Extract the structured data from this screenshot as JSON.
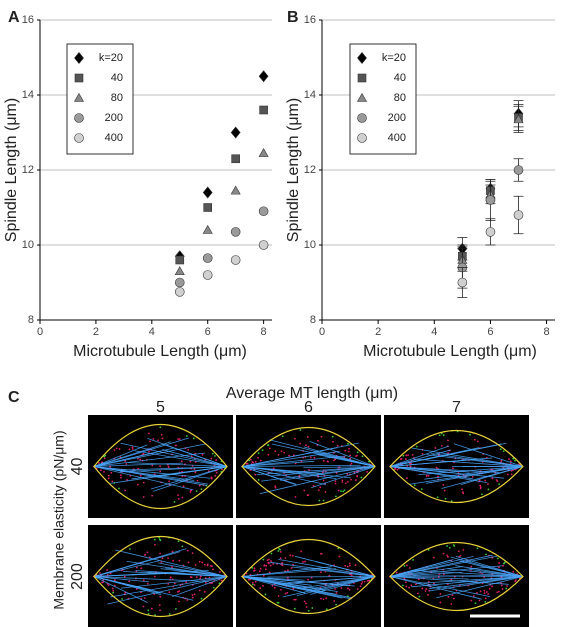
{
  "chart_data": [
    {
      "type": "scatter",
      "label": "A",
      "xlabel": "Microtubule Length (μm)",
      "ylabel": "Spindle Length (μm)",
      "xlim": [
        0,
        8.3
      ],
      "ylim": [
        8,
        16
      ],
      "xticks": [
        0,
        2,
        4,
        6,
        8
      ],
      "yticks": [
        8,
        10,
        12,
        14,
        16
      ],
      "grid": true,
      "x": [
        5,
        6,
        7,
        8
      ],
      "series": [
        {
          "name": "k=20",
          "marker": "diamond",
          "color": "#000000",
          "values": [
            9.7,
            11.4,
            13.0,
            14.5
          ]
        },
        {
          "name": "40",
          "marker": "square",
          "color": "#555555",
          "values": [
            9.6,
            11.0,
            12.3,
            13.6
          ]
        },
        {
          "name": "80",
          "marker": "triangle",
          "color": "#888888",
          "values": [
            9.3,
            10.4,
            11.45,
            12.45
          ]
        },
        {
          "name": "200",
          "marker": "circle",
          "color": "#9a9a9a",
          "values": [
            9.0,
            9.65,
            10.35,
            10.9
          ]
        },
        {
          "name": "400",
          "marker": "circle",
          "color": "#d0d0d0",
          "values": [
            8.75,
            9.2,
            9.6,
            10.0
          ]
        }
      ]
    },
    {
      "type": "errorbar",
      "label": "B",
      "xlabel": "Microtubule Length (μm)",
      "ylabel": "Spindle Length (μm)",
      "xlim": [
        0,
        8.3
      ],
      "ylim": [
        8,
        16
      ],
      "xticks": [
        0,
        2,
        4,
        6,
        8
      ],
      "yticks": [
        8,
        10,
        12,
        14,
        16
      ],
      "grid": true,
      "x": [
        5,
        6,
        7
      ],
      "series": [
        {
          "name": "k=20",
          "marker": "diamond",
          "color": "#000000",
          "values": [
            9.9,
            11.5,
            13.5
          ],
          "errors": [
            0.3,
            0.25,
            0.35
          ]
        },
        {
          "name": "40",
          "marker": "square",
          "color": "#555555",
          "values": [
            9.7,
            11.45,
            13.4
          ],
          "errors": [
            0.3,
            0.25,
            0.35
          ]
        },
        {
          "name": "80",
          "marker": "triangle",
          "color": "#888888",
          "values": [
            9.6,
            11.35,
            13.35
          ],
          "errors": [
            0.3,
            0.25,
            0.35
          ]
        },
        {
          "name": "200",
          "marker": "circle",
          "color": "#9a9a9a",
          "values": [
            9.4,
            11.2,
            12.0
          ],
          "errors": [
            0.55,
            0.55,
            0.3
          ]
        },
        {
          "name": "400",
          "marker": "circle",
          "color": "#d0d0d0",
          "values": [
            9.0,
            10.35,
            10.8
          ],
          "errors": [
            0.4,
            0.35,
            0.5
          ]
        }
      ]
    }
  ],
  "panel_c": {
    "label": "C",
    "title": "Average MT length (μm)",
    "columns": [
      "5",
      "6",
      "7"
    ],
    "row_axis_label": "Membrane elasticity (pN/μm)",
    "rows": [
      "40",
      "200"
    ]
  }
}
